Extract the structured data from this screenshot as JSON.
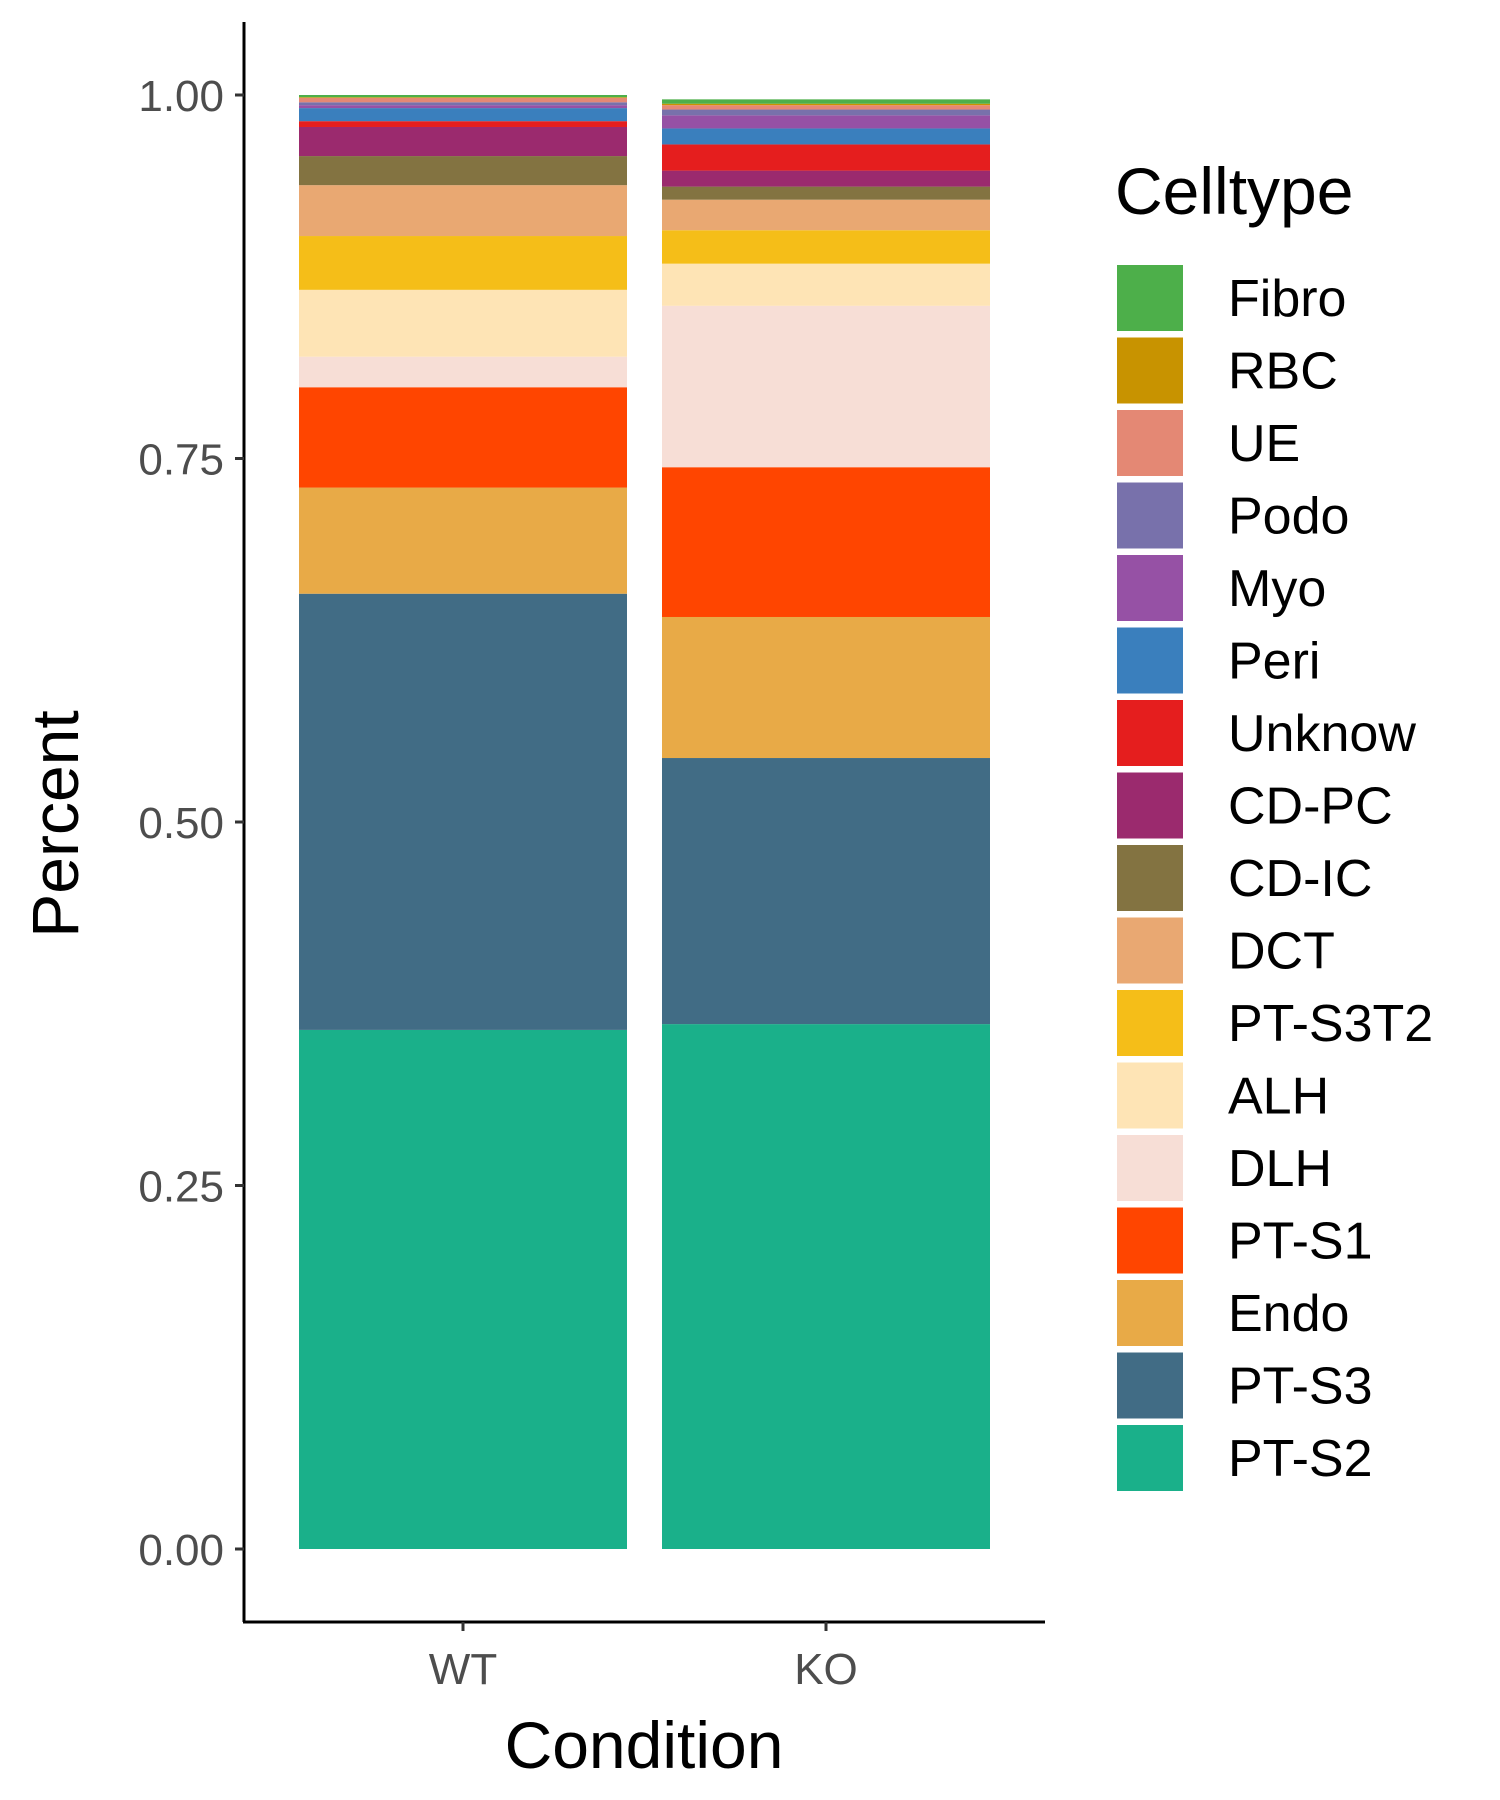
{
  "chart_data": {
    "type": "bar",
    "stacked": true,
    "xlabel": "Condition",
    "ylabel": "Percent",
    "ylim": [
      0,
      1
    ],
    "y_ticks": [
      "0.00",
      "0.25",
      "0.50",
      "0.75",
      "1.00"
    ],
    "y_tick_values": [
      0,
      0.25,
      0.5,
      0.75,
      1.0
    ],
    "categories": [
      "WT",
      "KO"
    ],
    "legend_title": "Celltype",
    "legend_position": "right",
    "grid": false,
    "series": [
      {
        "name": "PT-S2",
        "color": "#1AB08A",
        "values": [
          0.357,
          0.361
        ]
      },
      {
        "name": "PT-S3",
        "color": "#416C85",
        "values": [
          0.3,
          0.183
        ]
      },
      {
        "name": "Endo",
        "color": "#E8AA47",
        "values": [
          0.073,
          0.097
        ]
      },
      {
        "name": "PT-S1",
        "color": "#FF4500",
        "values": [
          0.069,
          0.103
        ]
      },
      {
        "name": "DLH",
        "color": "#F7DED6",
        "values": [
          0.021,
          0.111
        ]
      },
      {
        "name": "ALH",
        "color": "#FEE4B5",
        "values": [
          0.046,
          0.029
        ]
      },
      {
        "name": "PT-S3T2",
        "color": "#F5BE18",
        "values": [
          0.037,
          0.023
        ]
      },
      {
        "name": "DCT",
        "color": "#E9A872",
        "values": [
          0.035,
          0.021
        ]
      },
      {
        "name": "CD-IC",
        "color": "#837341",
        "values": [
          0.02,
          0.009
        ]
      },
      {
        "name": "CD-PC",
        "color": "#9B2A6E",
        "values": [
          0.02,
          0.011
        ]
      },
      {
        "name": "Unknow",
        "color": "#E51E1E",
        "values": [
          0.004,
          0.018
        ]
      },
      {
        "name": "Peri",
        "color": "#3A7FBD",
        "values": [
          0.009,
          0.011
        ]
      },
      {
        "name": "Myo",
        "color": "#9651A5",
        "values": [
          0.002,
          0.009
        ]
      },
      {
        "name": "Podo",
        "color": "#7871AB",
        "values": [
          0.002,
          0.004
        ]
      },
      {
        "name": "UE",
        "color": "#E48874",
        "values": [
          0.003,
          0.003
        ]
      },
      {
        "name": "RBC",
        "color": "#C89300",
        "values": [
          0.0005,
          0.001
        ]
      },
      {
        "name": "Fibro",
        "color": "#4DAF4A",
        "values": [
          0.0015,
          0.003
        ]
      }
    ],
    "legend_order": [
      "Fibro",
      "RBC",
      "UE",
      "Podo",
      "Myo",
      "Peri",
      "Unknow",
      "CD-PC",
      "CD-IC",
      "DCT",
      "PT-S3T2",
      "ALH",
      "DLH",
      "PT-S1",
      "Endo",
      "PT-S3",
      "PT-S2"
    ]
  }
}
